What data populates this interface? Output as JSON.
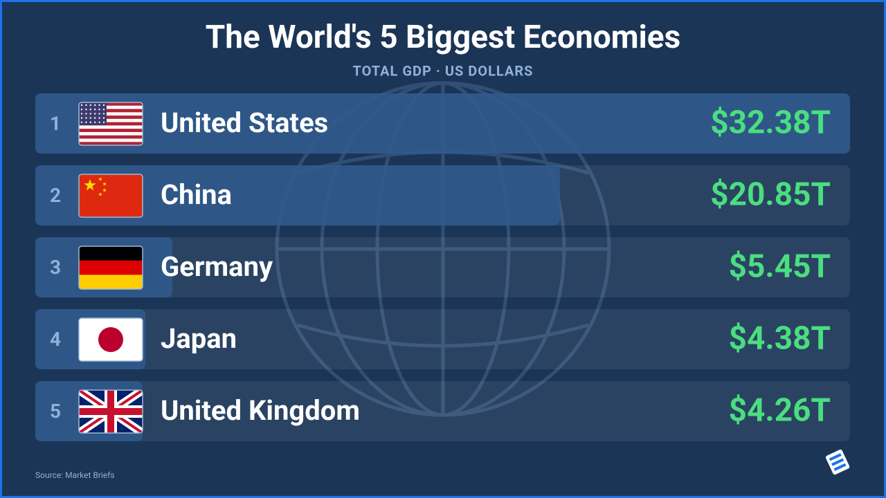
{
  "chart_data": {
    "type": "bar",
    "orientation": "horizontal",
    "title": "The World's 5 Biggest Economies",
    "subtitle": "TOTAL GDP · US DOLLARS",
    "ranks": [
      1,
      2,
      3,
      4,
      5
    ],
    "categories": [
      "United States",
      "China",
      "Germany",
      "Japan",
      "United Kingdom"
    ],
    "values": [
      32.38,
      20.85,
      5.45,
      4.38,
      4.26
    ],
    "value_labels": [
      "$32.38T",
      "$20.85T",
      "$5.45T",
      "$4.38T",
      "$4.26T"
    ],
    "color": "#2f5a8e",
    "source": "Source: Market Briefs"
  }
}
